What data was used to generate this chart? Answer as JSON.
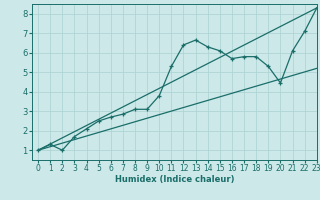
{
  "xlabel": "Humidex (Indice chaleur)",
  "xlim": [
    -0.5,
    23
  ],
  "ylim": [
    0.5,
    8.5
  ],
  "xticks": [
    0,
    1,
    2,
    3,
    4,
    5,
    6,
    7,
    8,
    9,
    10,
    11,
    12,
    13,
    14,
    15,
    16,
    17,
    18,
    19,
    20,
    21,
    22,
    23
  ],
  "yticks": [
    1,
    2,
    3,
    4,
    5,
    6,
    7,
    8
  ],
  "bg_color": "#cce8e8",
  "line_color": "#1a6e6a",
  "grid_color": "#b0d4d4",
  "line1_x": [
    0,
    1,
    2,
    3,
    4,
    5,
    6,
    7,
    8,
    9,
    10,
    11,
    12,
    13,
    14,
    15,
    16,
    17,
    18,
    19,
    20,
    21,
    22,
    23
  ],
  "line1_y": [
    1.0,
    1.3,
    1.0,
    1.7,
    2.1,
    2.5,
    2.7,
    2.85,
    3.1,
    3.1,
    3.8,
    5.3,
    6.4,
    6.65,
    6.3,
    6.1,
    5.7,
    5.8,
    5.8,
    5.3,
    4.45,
    6.1,
    7.1,
    8.3
  ],
  "line2_x": [
    0,
    23
  ],
  "line2_y": [
    1.0,
    8.3
  ],
  "line3_x": [
    0,
    23
  ],
  "line3_y": [
    1.0,
    5.2
  ]
}
